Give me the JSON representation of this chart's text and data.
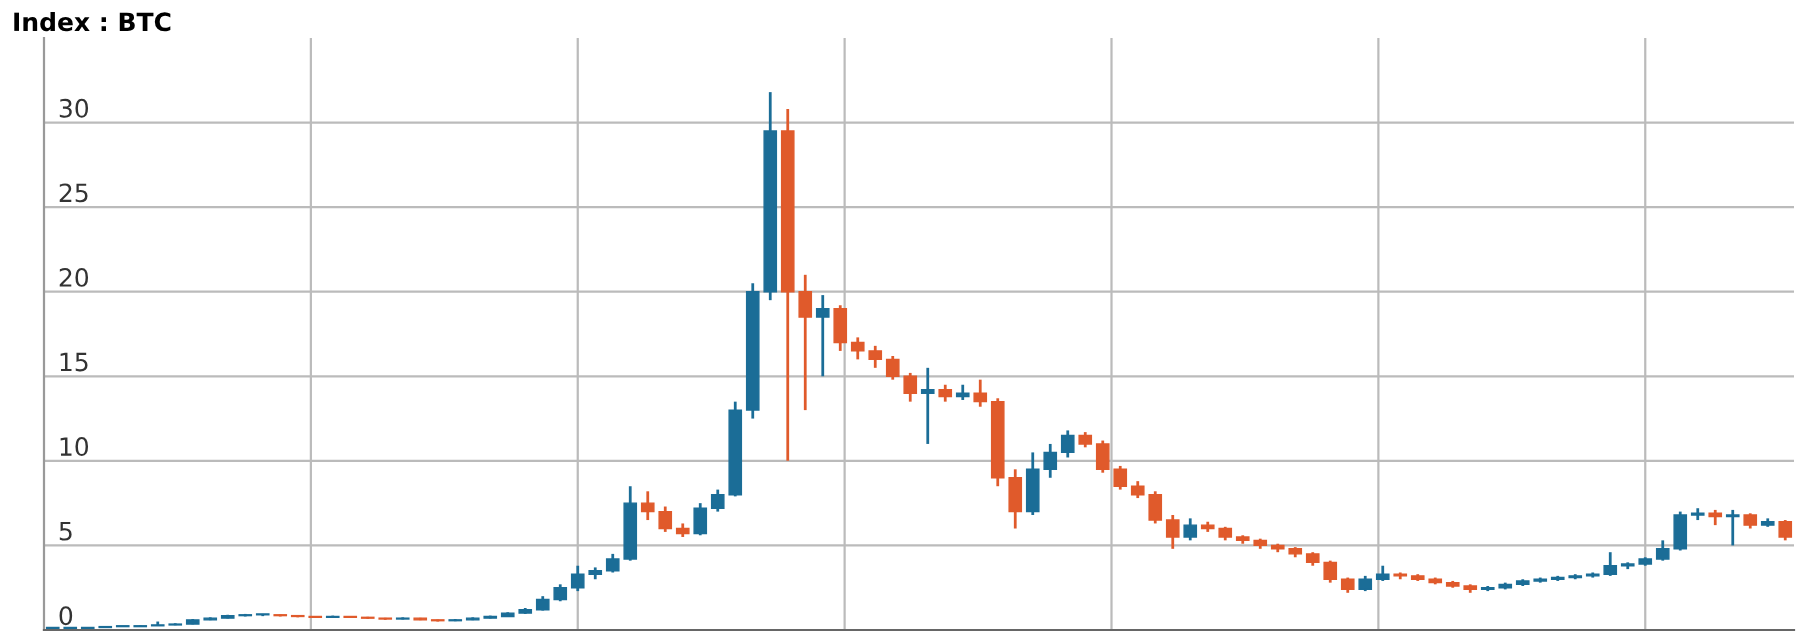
{
  "chart_data": {
    "type": "candlestick",
    "title": "Index : BTC",
    "categories": [
      null,
      null,
      null,
      null,
      null,
      null,
      null,
      null,
      null,
      null,
      null,
      null,
      null,
      null,
      null,
      null,
      null,
      null,
      null,
      null,
      null,
      null,
      null,
      null,
      null,
      null,
      null,
      null,
      null,
      null,
      null,
      null,
      null,
      null,
      null,
      null,
      null,
      null,
      null,
      null,
      null,
      null,
      null,
      null,
      null,
      null,
      null,
      null,
      null,
      null,
      null,
      null,
      null,
      null,
      null,
      null,
      null,
      null,
      null,
      null,
      null,
      null,
      null,
      null,
      null,
      null,
      null,
      null,
      null,
      null,
      null,
      null,
      null,
      null,
      null,
      null,
      null,
      null,
      null,
      null,
      null,
      null,
      null,
      null,
      null,
      null,
      null,
      null,
      null,
      null,
      null,
      null,
      null,
      null,
      null,
      null,
      null,
      null,
      null,
      null
    ],
    "ohlc": [
      [
        0.1,
        0.12,
        0.08,
        0.1
      ],
      [
        0.1,
        0.12,
        0.08,
        0.1
      ],
      [
        0.1,
        0.17,
        0.09,
        0.15
      ],
      [
        0.15,
        0.22,
        0.14,
        0.2
      ],
      [
        0.2,
        0.22,
        0.18,
        0.2
      ],
      [
        0.2,
        0.27,
        0.19,
        0.25
      ],
      [
        0.25,
        0.5,
        0.24,
        0.3
      ],
      [
        0.3,
        0.4,
        0.28,
        0.35
      ],
      [
        0.35,
        0.65,
        0.33,
        0.6
      ],
      [
        0.6,
        0.75,
        0.58,
        0.7
      ],
      [
        0.7,
        0.9,
        0.68,
        0.85
      ],
      [
        0.85,
        0.95,
        0.8,
        0.9
      ],
      [
        0.9,
        0.95,
        0.82,
        0.9
      ],
      [
        0.9,
        0.92,
        0.8,
        0.85
      ],
      [
        0.85,
        0.88,
        0.75,
        0.8
      ],
      [
        0.8,
        0.82,
        0.72,
        0.75
      ],
      [
        0.75,
        0.85,
        0.72,
        0.8
      ],
      [
        0.8,
        0.82,
        0.72,
        0.75
      ],
      [
        0.75,
        0.78,
        0.66,
        0.7
      ],
      [
        0.7,
        0.72,
        0.6,
        0.65
      ],
      [
        0.65,
        0.75,
        0.62,
        0.7
      ],
      [
        0.7,
        0.72,
        0.58,
        0.6
      ],
      [
        0.6,
        0.62,
        0.5,
        0.55
      ],
      [
        0.55,
        0.65,
        0.52,
        0.6
      ],
      [
        0.6,
        0.75,
        0.58,
        0.7
      ],
      [
        0.7,
        0.85,
        0.68,
        0.8
      ],
      [
        0.8,
        1.05,
        0.78,
        1.0
      ],
      [
        1.0,
        1.3,
        0.95,
        1.2
      ],
      [
        1.2,
        2.0,
        1.15,
        1.8
      ],
      [
        1.8,
        2.7,
        1.7,
        2.5
      ],
      [
        2.5,
        3.8,
        2.3,
        3.3
      ],
      [
        3.3,
        3.7,
        3.0,
        3.5
      ],
      [
        3.5,
        4.5,
        3.4,
        4.2
      ],
      [
        4.2,
        8.5,
        4.1,
        7.5
      ],
      [
        7.5,
        8.2,
        6.5,
        7.0
      ],
      [
        7.0,
        7.3,
        5.8,
        6.0
      ],
      [
        6.0,
        6.3,
        5.5,
        5.7
      ],
      [
        5.7,
        7.5,
        5.6,
        7.2
      ],
      [
        7.2,
        8.3,
        7.0,
        8.0
      ],
      [
        8.0,
        13.5,
        7.9,
        13.0
      ],
      [
        13.0,
        20.5,
        12.5,
        20.0
      ],
      [
        20.0,
        31.8,
        19.5,
        29.5
      ],
      [
        29.5,
        30.8,
        10.0,
        20.0
      ],
      [
        20.0,
        21.0,
        13.0,
        18.5
      ],
      [
        18.5,
        19.8,
        15.0,
        19.0
      ],
      [
        19.0,
        19.2,
        16.5,
        17.0
      ],
      [
        17.0,
        17.3,
        16.0,
        16.5
      ],
      [
        16.5,
        16.8,
        15.5,
        16.0
      ],
      [
        16.0,
        16.2,
        14.8,
        15.0
      ],
      [
        15.0,
        15.2,
        13.5,
        14.0
      ],
      [
        14.0,
        15.5,
        11.0,
        14.2
      ],
      [
        14.2,
        14.5,
        13.5,
        13.8
      ],
      [
        13.8,
        14.5,
        13.6,
        14.0
      ],
      [
        14.0,
        14.8,
        13.2,
        13.5
      ],
      [
        13.5,
        13.7,
        8.5,
        9.0
      ],
      [
        9.0,
        9.5,
        6.0,
        7.0
      ],
      [
        7.0,
        10.5,
        6.8,
        9.5
      ],
      [
        9.5,
        11.0,
        9.0,
        10.5
      ],
      [
        10.5,
        11.8,
        10.2,
        11.5
      ],
      [
        11.5,
        11.7,
        10.8,
        11.0
      ],
      [
        11.0,
        11.2,
        9.3,
        9.5
      ],
      [
        9.5,
        9.7,
        8.3,
        8.5
      ],
      [
        8.5,
        8.8,
        7.8,
        8.0
      ],
      [
        8.0,
        8.2,
        6.3,
        6.5
      ],
      [
        6.5,
        6.8,
        4.8,
        5.5
      ],
      [
        5.5,
        6.6,
        5.3,
        6.2
      ],
      [
        6.2,
        6.4,
        5.8,
        6.0
      ],
      [
        6.0,
        6.1,
        5.3,
        5.5
      ],
      [
        5.5,
        5.6,
        5.1,
        5.3
      ],
      [
        5.3,
        5.4,
        4.8,
        5.0
      ],
      [
        5.0,
        5.1,
        4.6,
        4.8
      ],
      [
        4.8,
        4.9,
        4.3,
        4.5
      ],
      [
        4.5,
        4.6,
        3.8,
        4.0
      ],
      [
        4.0,
        4.1,
        2.8,
        3.0
      ],
      [
        3.0,
        3.1,
        2.2,
        2.4
      ],
      [
        2.4,
        3.2,
        2.3,
        3.0
      ],
      [
        3.0,
        3.8,
        2.9,
        3.3
      ],
      [
        3.3,
        3.4,
        3.0,
        3.2
      ],
      [
        3.2,
        3.3,
        2.9,
        3.0
      ],
      [
        3.0,
        3.1,
        2.7,
        2.8
      ],
      [
        2.8,
        2.9,
        2.5,
        2.6
      ],
      [
        2.6,
        2.7,
        2.2,
        2.4
      ],
      [
        2.4,
        2.6,
        2.3,
        2.5
      ],
      [
        2.5,
        2.8,
        2.4,
        2.7
      ],
      [
        2.7,
        3.0,
        2.6,
        2.9
      ],
      [
        2.9,
        3.1,
        2.8,
        3.0
      ],
      [
        3.0,
        3.2,
        2.9,
        3.1
      ],
      [
        3.1,
        3.3,
        3.0,
        3.2
      ],
      [
        3.2,
        3.4,
        3.1,
        3.3
      ],
      [
        3.3,
        4.6,
        3.2,
        3.8
      ],
      [
        3.8,
        4.0,
        3.6,
        3.9
      ],
      [
        3.9,
        4.3,
        3.8,
        4.2
      ],
      [
        4.2,
        5.3,
        4.1,
        4.8
      ],
      [
        4.8,
        7.0,
        4.7,
        6.8
      ],
      [
        6.8,
        7.2,
        6.5,
        6.9
      ],
      [
        6.9,
        7.1,
        6.2,
        6.7
      ],
      [
        6.7,
        7.1,
        5.0,
        6.8
      ],
      [
        6.8,
        6.9,
        6.0,
        6.2
      ],
      [
        6.2,
        6.6,
        6.1,
        6.4
      ],
      [
        6.4,
        6.5,
        5.3,
        5.5
      ]
    ],
    "colors": [
      "#1b6d97",
      "#1b6d97",
      "#1b6d97",
      "#1b6d97",
      "#1b6d97",
      "#1b6d97",
      "#1b6d97",
      "#1b6d97",
      "#1b6d97",
      "#1b6d97",
      "#1b6d97",
      "#1b6d97",
      "#1b6d97",
      "#e05a2b",
      "#e05a2b",
      "#e05a2b",
      "#1b6d97",
      "#e05a2b",
      "#e05a2b",
      "#e05a2b",
      "#1b6d97",
      "#e05a2b",
      "#e05a2b",
      "#1b6d97",
      "#1b6d97",
      "#1b6d97",
      "#1b6d97",
      "#1b6d97",
      "#1b6d97",
      "#1b6d97",
      "#1b6d97",
      "#1b6d97",
      "#1b6d97",
      "#1b6d97",
      "#e05a2b",
      "#e05a2b",
      "#e05a2b",
      "#1b6d97",
      "#1b6d97",
      "#1b6d97",
      "#1b6d97",
      "#1b6d97",
      "#e05a2b",
      "#e05a2b",
      "#1b6d97",
      "#e05a2b",
      "#e05a2b",
      "#e05a2b",
      "#e05a2b",
      "#e05a2b",
      "#1b6d97",
      "#e05a2b",
      "#1b6d97",
      "#e05a2b",
      "#e05a2b",
      "#e05a2b",
      "#1b6d97",
      "#1b6d97",
      "#1b6d97",
      "#e05a2b",
      "#e05a2b",
      "#e05a2b",
      "#e05a2b",
      "#e05a2b",
      "#e05a2b",
      "#1b6d97",
      "#e05a2b",
      "#e05a2b",
      "#e05a2b",
      "#e05a2b",
      "#e05a2b",
      "#e05a2b",
      "#e05a2b",
      "#e05a2b",
      "#e05a2b",
      "#1b6d97",
      "#1b6d97",
      "#e05a2b",
      "#e05a2b",
      "#e05a2b",
      "#e05a2b",
      "#e05a2b",
      "#1b6d97",
      "#1b6d97",
      "#1b6d97",
      "#1b6d97",
      "#1b6d97",
      "#1b6d97",
      "#1b6d97",
      "#1b6d97",
      "#1b6d97",
      "#1b6d97",
      "#1b6d97",
      "#1b6d97",
      "#1b6d97",
      "#e05a2b",
      "#1b6d97",
      "#e05a2b",
      "#1b6d97",
      "#e05a2b"
    ],
    "ylim": [
      0,
      35
    ],
    "yticks": [
      0,
      5,
      10,
      15,
      20,
      25,
      30
    ],
    "grid": true
  }
}
